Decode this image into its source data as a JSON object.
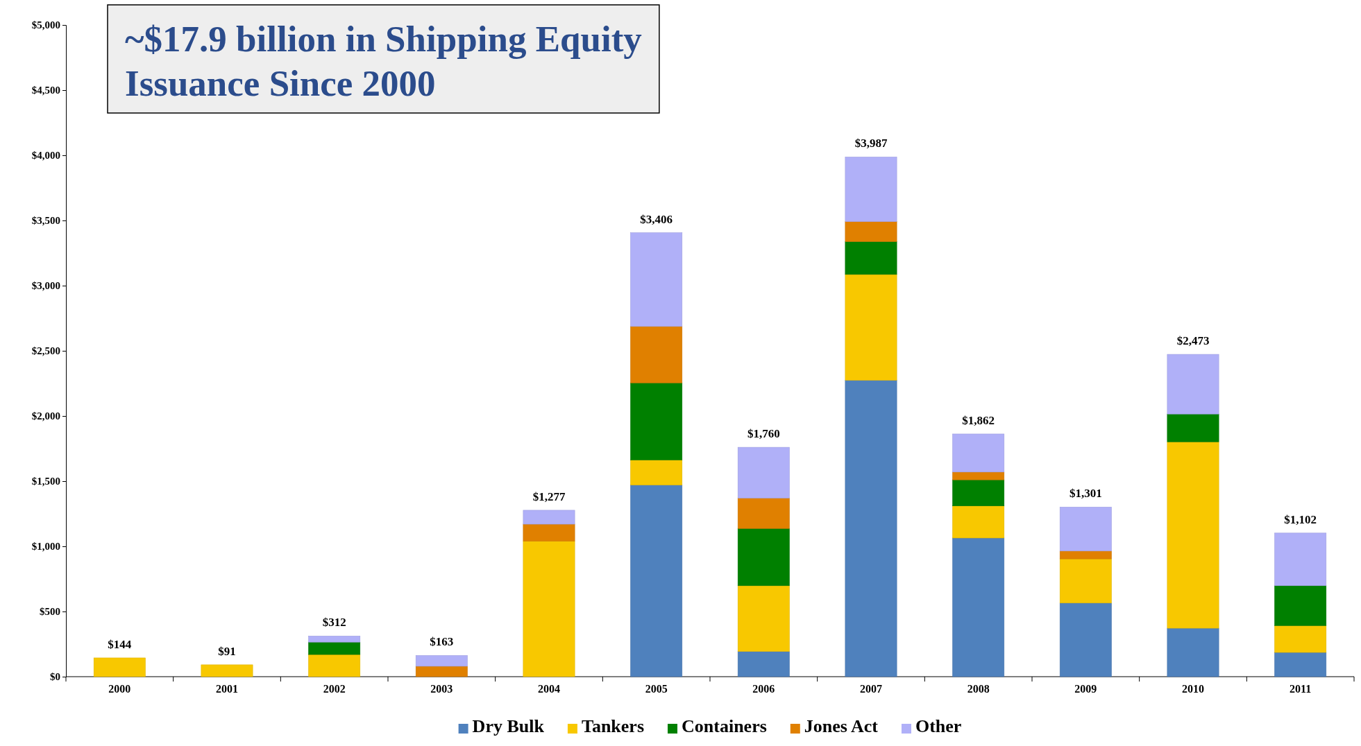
{
  "chart_data": {
    "type": "bar",
    "stacked": true,
    "title": "~$17.9 billion in Shipping Equity Issuance Since 2000",
    "categories": [
      "2000",
      "2001",
      "2002",
      "2003",
      "2004",
      "2005",
      "2006",
      "2007",
      "2008",
      "2009",
      "2010",
      "2011"
    ],
    "series": [
      {
        "name": "Dry Bulk",
        "color": "#4f81bd",
        "values": [
          0,
          0,
          0,
          0,
          0,
          1470,
          193,
          2274,
          1064,
          565,
          372,
          186
        ]
      },
      {
        "name": "Tankers",
        "color": "#f8c800",
        "values": [
          144,
          91,
          170,
          0,
          1040,
          193,
          505,
          812,
          246,
          339,
          1430,
          206
        ]
      },
      {
        "name": "Containers",
        "color": "#008000",
        "values": [
          0,
          0,
          95,
          0,
          0,
          591,
          439,
          252,
          200,
          0,
          213,
          306
        ]
      },
      {
        "name": "Jones Act",
        "color": "#e08000",
        "values": [
          0,
          0,
          0,
          80,
          130,
          433,
          233,
          153,
          60,
          60,
          0,
          0
        ]
      },
      {
        "name": "Other",
        "color": "#b0b0f8",
        "values": [
          0,
          0,
          47,
          83,
          107,
          719,
          390,
          496,
          292,
          337,
          458,
          404
        ]
      }
    ],
    "totals": [
      "$144",
      "$91",
      "$312",
      "$163",
      "$1,277",
      "$3,406",
      "$1,760",
      "$3,987",
      "$1,862",
      "$1,301",
      "$2,473",
      "$1,102"
    ],
    "ylim": [
      0,
      5000
    ],
    "yticks": [
      {
        "value": 0,
        "label": "$0"
      },
      {
        "value": 500,
        "label": "$500"
      },
      {
        "value": 1000,
        "label": "$1,000"
      },
      {
        "value": 1500,
        "label": "$1,500"
      },
      {
        "value": 2000,
        "label": "$2,000"
      },
      {
        "value": 2500,
        "label": "$2,500"
      },
      {
        "value": 3000,
        "label": "$3,000"
      },
      {
        "value": 3500,
        "label": "$3,500"
      },
      {
        "value": 4000,
        "label": "$4,000"
      },
      {
        "value": 4500,
        "label": "$4,500"
      },
      {
        "value": 5000,
        "label": "$5,000"
      }
    ],
    "grid": false,
    "legend": "bottom"
  }
}
